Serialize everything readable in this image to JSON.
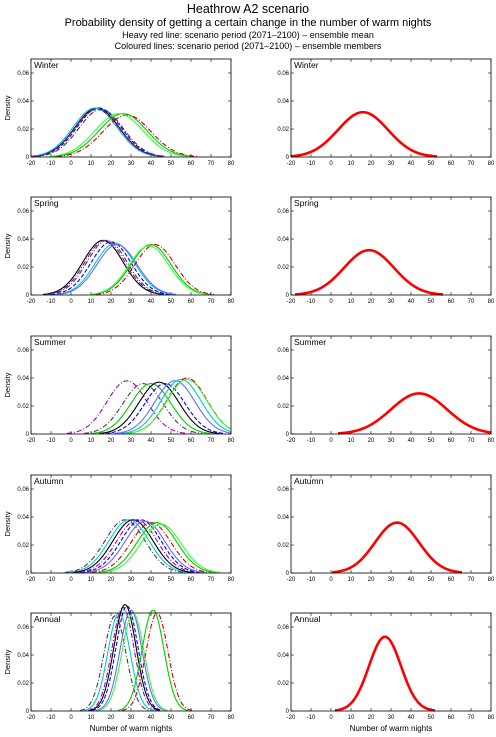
{
  "header": {
    "title": "Heathrow A2 scenario",
    "subtitle": "Probability density of getting a certain change in the number of warm nights",
    "note_line1": "Heavy red line: scenario period (2071–2100) – ensemble mean",
    "note_line2": "Coloured lines: scenario period (2071–2100) – ensemble members"
  },
  "chart_data": {
    "type": "line",
    "ylabel": "Density",
    "xlabel": "Number of warm nights",
    "xlim": [
      -20,
      80
    ],
    "ylim": [
      0,
      0.07
    ],
    "xticks": [
      -20,
      -10,
      0,
      10,
      20,
      30,
      40,
      50,
      60,
      70,
      80
    ],
    "yticks": [
      0,
      0.02,
      0.04,
      0.06
    ],
    "ensemble_colors": [
      "#000000",
      "#0000ff",
      "#00cc00",
      "#00cccc",
      "#cc0000",
      "#a000a0",
      "#404040",
      "#6a6aff",
      "#33ff33"
    ],
    "mean_color": "#ff0000",
    "panels": [
      {
        "season": "Winter",
        "mean": {
          "mu": 16,
          "sigma": 12.5,
          "peak": 0.032
        },
        "members": [
          {
            "mu": 13,
            "sigma": 11,
            "peak": 0.035,
            "color": "#000000",
            "dash": ""
          },
          {
            "mu": 14,
            "sigma": 11,
            "peak": 0.035,
            "color": "#0000ff",
            "dash": "4 2"
          },
          {
            "mu": 12,
            "sigma": 11,
            "peak": 0.035,
            "color": "#00cccc",
            "dash": ""
          },
          {
            "mu": 15,
            "sigma": 11,
            "peak": 0.034,
            "color": "#404040",
            "dash": "5 2 1 2"
          },
          {
            "mu": 26,
            "sigma": 12,
            "peak": 0.031,
            "color": "#00cc00",
            "dash": ""
          },
          {
            "mu": 28,
            "sigma": 12,
            "peak": 0.03,
            "color": "#cc0000",
            "dash": "5 2 1 2"
          },
          {
            "mu": 24,
            "sigma": 12,
            "peak": 0.031,
            "color": "#33ff33",
            "dash": ""
          },
          {
            "mu": 13,
            "sigma": 11,
            "peak": 0.034,
            "color": "#a000a0",
            "dash": "4 2"
          }
        ]
      },
      {
        "season": "Spring",
        "mean": {
          "mu": 19,
          "sigma": 12.5,
          "peak": 0.032
        },
        "members": [
          {
            "mu": 16,
            "sigma": 10,
            "peak": 0.039,
            "color": "#000000",
            "dash": ""
          },
          {
            "mu": 17,
            "sigma": 10,
            "peak": 0.039,
            "color": "#a000a0",
            "dash": "5 2 1 2"
          },
          {
            "mu": 20,
            "sigma": 10,
            "peak": 0.038,
            "color": "#0000ff",
            "dash": "4 2"
          },
          {
            "mu": 22,
            "sigma": 10,
            "peak": 0.037,
            "color": "#00cccc",
            "dash": ""
          },
          {
            "mu": 18,
            "sigma": 10,
            "peak": 0.039,
            "color": "#404040",
            "dash": "5 2 1 2"
          },
          {
            "mu": 23,
            "sigma": 10,
            "peak": 0.036,
            "color": "#6a6aff",
            "dash": ""
          },
          {
            "mu": 40,
            "sigma": 10,
            "peak": 0.036,
            "color": "#00cc00",
            "dash": ""
          },
          {
            "mu": 42,
            "sigma": 10,
            "peak": 0.036,
            "color": "#cc0000",
            "dash": "5 2 1 2"
          },
          {
            "mu": 39,
            "sigma": 10,
            "peak": 0.035,
            "color": "#33ff33",
            "dash": ""
          }
        ]
      },
      {
        "season": "Summer",
        "mean": {
          "mu": 44,
          "sigma": 14,
          "peak": 0.029
        },
        "members": [
          {
            "mu": 28,
            "sigma": 10,
            "peak": 0.038,
            "color": "#a000a0",
            "dash": "5 2 1 2"
          },
          {
            "mu": 36,
            "sigma": 10,
            "peak": 0.036,
            "color": "#404040",
            "dash": "5 2 1 2"
          },
          {
            "mu": 40,
            "sigma": 10,
            "peak": 0.036,
            "color": "#00cc00",
            "dash": ""
          },
          {
            "mu": 44,
            "sigma": 10,
            "peak": 0.037,
            "color": "#000000",
            "dash": ""
          },
          {
            "mu": 47,
            "sigma": 10,
            "peak": 0.036,
            "color": "#0000ff",
            "dash": "4 2"
          },
          {
            "mu": 52,
            "sigma": 10,
            "peak": 0.038,
            "color": "#6a6aff",
            "dash": ""
          },
          {
            "mu": 55,
            "sigma": 10,
            "peak": 0.039,
            "color": "#00cccc",
            "dash": ""
          },
          {
            "mu": 58,
            "sigma": 10,
            "peak": 0.04,
            "color": "#cc0000",
            "dash": "5 2 1 2"
          },
          {
            "mu": 58,
            "sigma": 10,
            "peak": 0.039,
            "color": "#33ff33",
            "dash": ""
          }
        ]
      },
      {
        "season": "Autumn",
        "mean": {
          "mu": 33,
          "sigma": 11,
          "peak": 0.036
        },
        "members": [
          {
            "mu": 27,
            "sigma": 10,
            "peak": 0.038,
            "color": "#404040",
            "dash": "5 2 1 2"
          },
          {
            "mu": 29,
            "sigma": 10,
            "peak": 0.038,
            "color": "#00cccc",
            "dash": ""
          },
          {
            "mu": 31,
            "sigma": 10,
            "peak": 0.038,
            "color": "#000000",
            "dash": ""
          },
          {
            "mu": 33,
            "sigma": 10,
            "peak": 0.038,
            "color": "#a000a0",
            "dash": "5 2 1 2"
          },
          {
            "mu": 35,
            "sigma": 10,
            "peak": 0.038,
            "color": "#0000ff",
            "dash": "4 2"
          },
          {
            "mu": 37,
            "sigma": 10,
            "peak": 0.037,
            "color": "#6a6aff",
            "dash": ""
          },
          {
            "mu": 43,
            "sigma": 10,
            "peak": 0.036,
            "color": "#00cc00",
            "dash": ""
          },
          {
            "mu": 45,
            "sigma": 10,
            "peak": 0.035,
            "color": "#33ff33",
            "dash": ""
          },
          {
            "mu": 40,
            "sigma": 10,
            "peak": 0.036,
            "color": "#cc0000",
            "dash": "5 2 1 2"
          }
        ]
      },
      {
        "season": "Annual",
        "mean": {
          "mu": 27,
          "sigma": 8,
          "peak": 0.053
        },
        "members": [
          {
            "mu": 22,
            "sigma": 5.5,
            "peak": 0.068,
            "color": "#404040",
            "dash": "5 2 1 2"
          },
          {
            "mu": 24,
            "sigma": 5.5,
            "peak": 0.07,
            "color": "#00cccc",
            "dash": ""
          },
          {
            "mu": 26,
            "sigma": 5.5,
            "peak": 0.074,
            "color": "#a000a0",
            "dash": "5 2 1 2"
          },
          {
            "mu": 27,
            "sigma": 5.5,
            "peak": 0.076,
            "color": "#000000",
            "dash": ""
          },
          {
            "mu": 28,
            "sigma": 5.5,
            "peak": 0.075,
            "color": "#0000ff",
            "dash": "4 2"
          },
          {
            "mu": 30,
            "sigma": 5.5,
            "peak": 0.072,
            "color": "#6a6aff",
            "dash": ""
          },
          {
            "mu": 31,
            "sigma": 5.5,
            "peak": 0.07,
            "color": "#33ff33",
            "dash": ""
          },
          {
            "mu": 41,
            "sigma": 5.5,
            "peak": 0.072,
            "color": "#00cc00",
            "dash": ""
          },
          {
            "mu": 43,
            "sigma": 5.5,
            "peak": 0.07,
            "color": "#cc0000",
            "dash": "5 2 1 2"
          }
        ]
      }
    ]
  }
}
